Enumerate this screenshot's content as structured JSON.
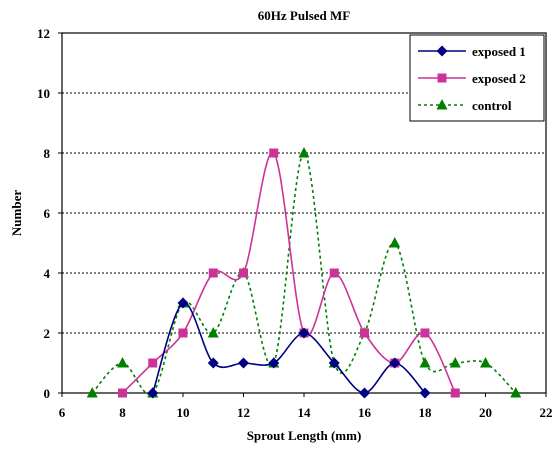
{
  "chart_data": {
    "type": "line",
    "title": "60Hz Pulsed MF",
    "xlabel": "Sprout Length (mm)",
    "ylabel": "Number",
    "xlim": [
      6,
      22
    ],
    "ylim": [
      0,
      12
    ],
    "x_ticks": [
      "6",
      "8",
      "10",
      "12",
      "14",
      "16",
      "18",
      "20",
      "22"
    ],
    "y_ticks": [
      "0",
      "2",
      "4",
      "6",
      "8",
      "10",
      "12"
    ],
    "grid": "horizontal dotted",
    "legend_position": "top-right",
    "series": [
      {
        "name": "exposed 1",
        "color": "#000080",
        "marker": "diamond",
        "line": "solid",
        "x": [
          9,
          10,
          11,
          12,
          13,
          14,
          15,
          16,
          17,
          18
        ],
        "y": [
          0,
          3,
          1,
          1,
          1,
          2,
          1,
          0,
          1,
          0
        ]
      },
      {
        "name": "exposed 2",
        "color": "#cc3399",
        "marker": "square",
        "line": "solid",
        "x": [
          8,
          9,
          10,
          11,
          12,
          13,
          14,
          15,
          16,
          17,
          18,
          19
        ],
        "y": [
          0,
          1,
          2,
          4,
          4,
          8,
          2,
          4,
          2,
          1,
          2,
          0
        ]
      },
      {
        "name": "control",
        "color": "#008000",
        "marker": "triangle",
        "line": "dotted",
        "x": [
          7,
          8,
          9,
          10,
          11,
          12,
          13,
          14,
          15,
          16,
          17,
          18,
          19,
          20,
          21
        ],
        "y": [
          0,
          1,
          0,
          3,
          2,
          4,
          1,
          8,
          1,
          2,
          5,
          1,
          1,
          1,
          0
        ]
      }
    ]
  }
}
